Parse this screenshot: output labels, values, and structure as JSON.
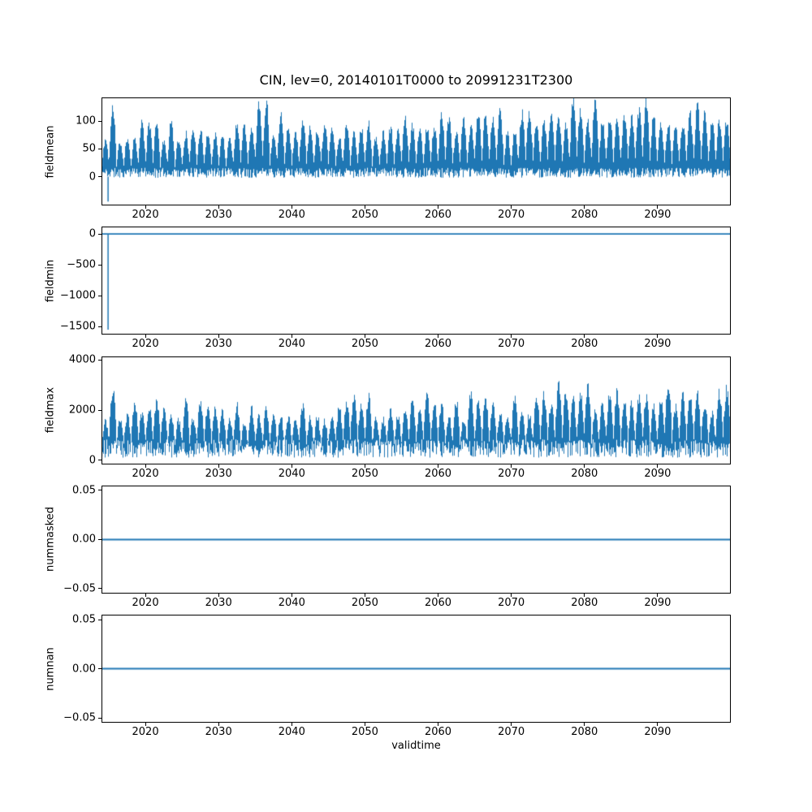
{
  "figure": {
    "title": "CIN, lev=0, 20140101T0000 to 20991231T2300",
    "xlabel": "validtime",
    "line_color": "#1f77b4",
    "background": "#ffffff"
  },
  "chart_data": [
    {
      "type": "line",
      "ylabel": "fieldmean",
      "x_range": [
        2014,
        2100
      ],
      "ylim": [
        -52,
        143
      ],
      "yticks": [
        0,
        50,
        100
      ],
      "ytick_labels": [
        "0",
        "50",
        "100"
      ],
      "xticks": [
        2020,
        2030,
        2040,
        2050,
        2060,
        2070,
        2080,
        2090
      ],
      "xtick_labels": [
        "2020",
        "2030",
        "2040",
        "2050",
        "2060",
        "2070",
        "2080",
        "2090"
      ],
      "style": "dense-oscillation",
      "seed": 11,
      "envelope": {
        "low": [
          -2,
          16
        ],
        "peak_base": 58,
        "peak_var": 38,
        "trend": 28,
        "cap": 140,
        "shape_pow": 1.1,
        "base_frac": 0.3
      },
      "spikes": [
        {
          "x": 2014.9,
          "y": -45
        }
      ]
    },
    {
      "type": "line",
      "ylabel": "fieldmin",
      "x_range": [
        2014,
        2100
      ],
      "ylim": [
        -1630,
        120
      ],
      "yticks": [
        0,
        -500,
        -1000,
        -1500
      ],
      "ytick_labels": [
        "0",
        "−500",
        "−1000",
        "−1500"
      ],
      "xticks": [
        2020,
        2030,
        2040,
        2050,
        2060,
        2070,
        2080,
        2090
      ],
      "xtick_labels": [
        "2020",
        "2030",
        "2040",
        "2050",
        "2060",
        "2070",
        "2080",
        "2090"
      ],
      "style": "flat-with-spikes",
      "flat_value": 0,
      "spikes": [
        {
          "x": 2014.9,
          "y": -1550
        }
      ]
    },
    {
      "type": "line",
      "ylabel": "fieldmax",
      "x_range": [
        2014,
        2100
      ],
      "ylim": [
        -150,
        4150
      ],
      "yticks": [
        0,
        2000,
        4000
      ],
      "ytick_labels": [
        "0",
        "2000",
        "4000"
      ],
      "xticks": [
        2020,
        2030,
        2040,
        2050,
        2060,
        2070,
        2080,
        2090
      ],
      "xtick_labels": [
        "2020",
        "2030",
        "2040",
        "2050",
        "2060",
        "2070",
        "2080",
        "2090"
      ],
      "style": "dense-oscillation",
      "seed": 23,
      "envelope": {
        "low": [
          120,
          850
        ],
        "peak_base": 1350,
        "peak_var": 1050,
        "trend": 450,
        "cap": 4050,
        "shape_pow": 1.0,
        "base_frac": 0.32
      },
      "spikes": []
    },
    {
      "type": "line",
      "ylabel": "nummasked",
      "x_range": [
        2014,
        2100
      ],
      "ylim": [
        -0.055,
        0.055
      ],
      "yticks": [
        0.05,
        0,
        -0.05
      ],
      "ytick_labels": [
        "0.05",
        "0.00",
        "−0.05"
      ],
      "xticks": [
        2020,
        2030,
        2040,
        2050,
        2060,
        2070,
        2080,
        2090
      ],
      "xtick_labels": [
        "2020",
        "2030",
        "2040",
        "2050",
        "2060",
        "2070",
        "2080",
        "2090"
      ],
      "style": "flat-with-spikes",
      "flat_value": 0,
      "spikes": []
    },
    {
      "type": "line",
      "ylabel": "numnan",
      "x_range": [
        2014,
        2100
      ],
      "ylim": [
        -0.055,
        0.055
      ],
      "yticks": [
        0.05,
        0,
        -0.05
      ],
      "ytick_labels": [
        "0.05",
        "0.00",
        "−0.05"
      ],
      "xticks": [
        2020,
        2030,
        2040,
        2050,
        2060,
        2070,
        2080,
        2090
      ],
      "xtick_labels": [
        "2020",
        "2030",
        "2040",
        "2050",
        "2060",
        "2070",
        "2080",
        "2090"
      ],
      "style": "flat-with-spikes",
      "flat_value": 0,
      "spikes": []
    }
  ]
}
